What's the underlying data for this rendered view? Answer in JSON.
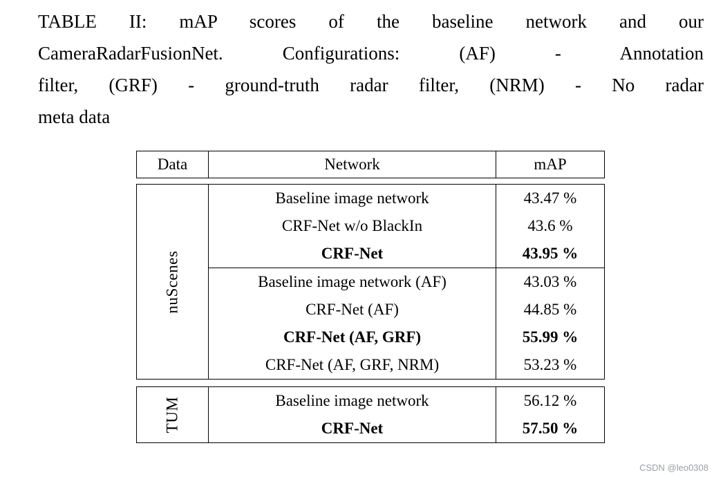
{
  "caption": {
    "lines": [
      "TABLE II: mAP scores of the baseline network and our",
      "CameraRadarFusionNet. Configurations: (AF) - Annotation",
      "filter, (GRF) - ground-truth radar filter, (NRM) - No radar",
      "meta data"
    ]
  },
  "table": {
    "headers": [
      "Data",
      "Network",
      "mAP"
    ],
    "groups": [
      {
        "data_label": "nuScenes",
        "subgroups": [
          {
            "rows": [
              {
                "network": "Baseline image network",
                "map": "43.47 %",
                "bold": false
              },
              {
                "network": "CRF-Net w/o BlackIn",
                "map": "43.6 %",
                "bold": false
              },
              {
                "network": "CRF-Net",
                "map": "43.95 %",
                "bold": true
              }
            ]
          },
          {
            "rows": [
              {
                "network": "Baseline image network (AF)",
                "map": "43.03 %",
                "bold": false
              },
              {
                "network": "CRF-Net (AF)",
                "map": "44.85 %",
                "bold": false
              },
              {
                "network": "CRF-Net (AF, GRF)",
                "map": "55.99 %",
                "bold": true
              },
              {
                "network": "CRF-Net (AF, GRF, NRM)",
                "map": "53.23 %",
                "bold": false
              }
            ]
          }
        ]
      },
      {
        "data_label": "TUM",
        "subgroups": [
          {
            "rows": [
              {
                "network": "Baseline image network",
                "map": "56.12 %",
                "bold": false
              },
              {
                "network": "CRF-Net",
                "map": "57.50 %",
                "bold": true
              }
            ]
          }
        ]
      }
    ]
  },
  "watermark": "CSDN @leo0308"
}
